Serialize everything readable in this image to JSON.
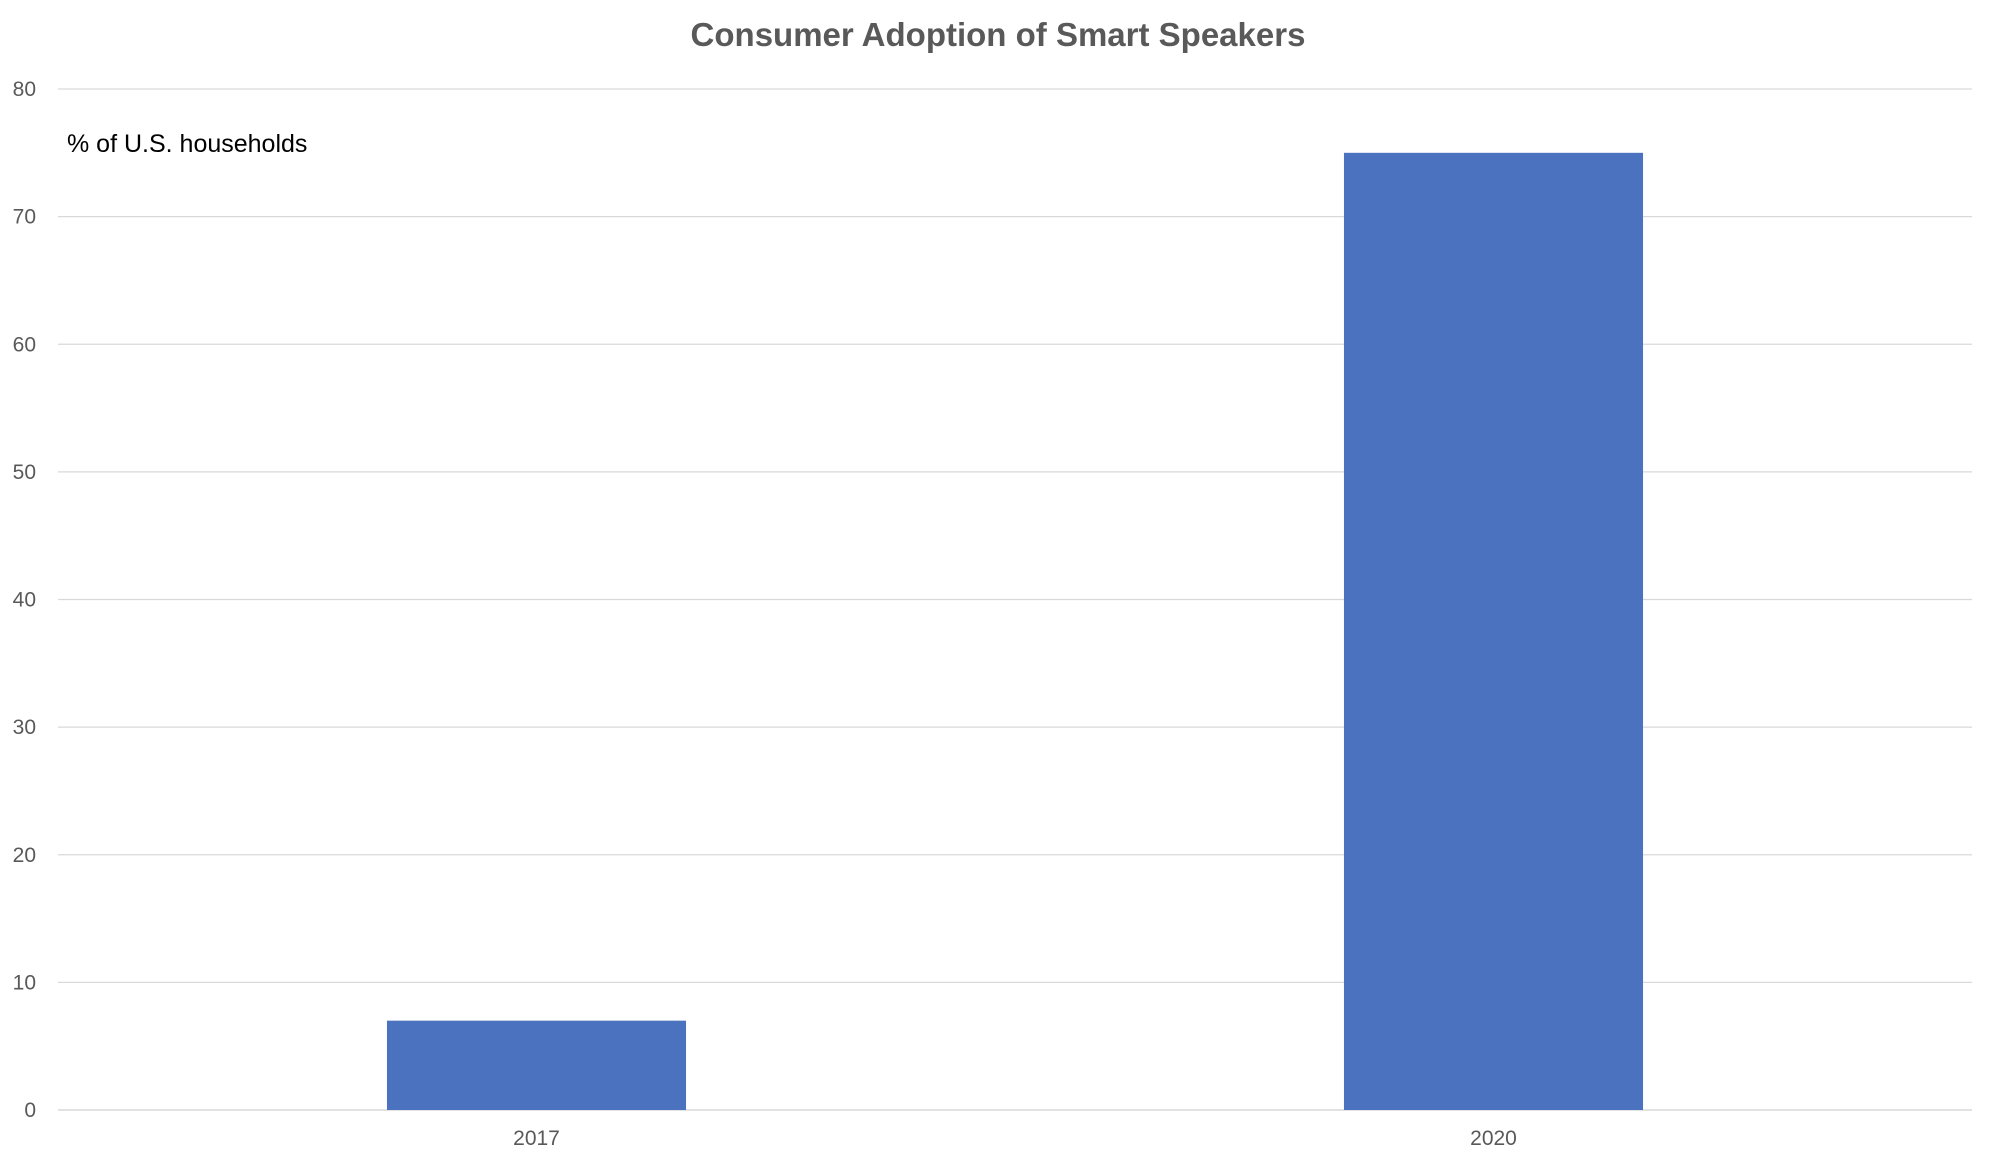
{
  "chart_data": {
    "type": "bar",
    "title": "Consumer Adoption of Smart Speakers",
    "unit_label": "% of U.S. households",
    "xlabel": "",
    "ylabel": "",
    "categories": [
      "2017",
      "2020"
    ],
    "values": [
      7,
      75
    ],
    "ylim": [
      0,
      80
    ],
    "yticks": [
      0,
      10,
      20,
      30,
      40,
      50,
      60,
      70,
      80
    ],
    "grid": true,
    "legend": "none",
    "bar_color": "#4a72bf"
  }
}
